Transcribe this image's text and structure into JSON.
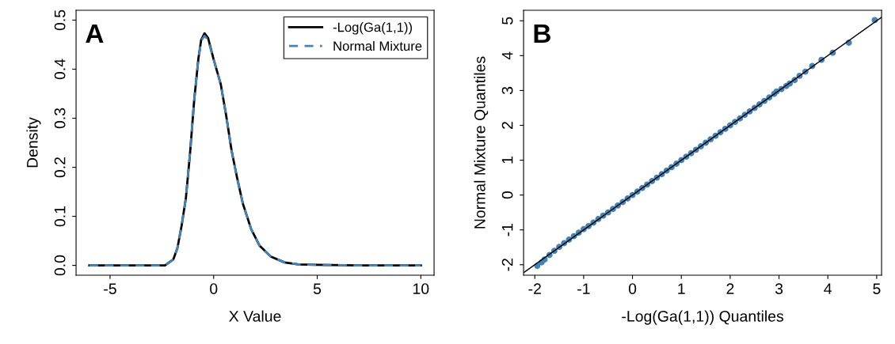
{
  "chart_data": [
    {
      "type": "line",
      "xlabel": "X Value",
      "ylabel": "Density",
      "annotations": [
        "A"
      ],
      "legend": "top right",
      "grid": false,
      "xlim": [
        -6.64,
        10.64
      ],
      "xticks": [
        -5,
        0,
        5,
        10
      ],
      "ylim": [
        -0.02,
        0.52
      ],
      "yticks": [
        {
          "value": 0,
          "label": "0.0"
        },
        0.1,
        0.2,
        0.3,
        0.4,
        0.5
      ],
      "series": [
        {
          "name": "-Log(Ga(1,1))",
          "color": "#000000",
          "line_style": "solid",
          "x": [
            -6,
            -4,
            -2.35,
            -1.95,
            -1.75,
            -1.55,
            -1.34,
            -1.14,
            -0.94,
            -0.74,
            -0.6,
            -0.44,
            -0.27,
            0,
            0.34,
            0.6,
            0.87,
            1.14,
            1.41,
            1.81,
            2.22,
            2.76,
            3.43,
            4.1,
            5,
            7,
            10
          ],
          "values": [
            0,
            0,
            0,
            0.012,
            0.035,
            0.08,
            0.137,
            0.228,
            0.336,
            0.42,
            0.46,
            0.473,
            0.464,
            0.42,
            0.37,
            0.307,
            0.233,
            0.177,
            0.126,
            0.074,
            0.04,
            0.018,
            0.006,
            0.002,
            0.001,
            0,
            0
          ]
        },
        {
          "name": "Normal Mixture",
          "color": "#4682b4",
          "line_style": "dashed",
          "x": [
            -6,
            -4,
            -2.35,
            -1.95,
            -1.75,
            -1.55,
            -1.34,
            -1.14,
            -0.94,
            -0.74,
            -0.6,
            -0.44,
            -0.27,
            0,
            0.34,
            0.6,
            0.87,
            1.14,
            1.41,
            1.81,
            2.22,
            2.76,
            3.43,
            4.1,
            5,
            7,
            10
          ],
          "values": [
            0,
            0,
            0,
            0.012,
            0.035,
            0.08,
            0.137,
            0.228,
            0.336,
            0.42,
            0.458,
            0.468,
            0.46,
            0.42,
            0.37,
            0.307,
            0.233,
            0.177,
            0.126,
            0.074,
            0.04,
            0.018,
            0.006,
            0.002,
            0.001,
            0,
            0
          ]
        }
      ]
    },
    {
      "type": "scatter",
      "xlabel": "-Log(Ga(1,1)) Quantiles",
      "ylabel": "Normal Mixture Quantiles",
      "annotations": [
        "B"
      ],
      "grid": false,
      "xlim": [
        -2.23,
        5.1
      ],
      "xticks": [
        -2,
        -1,
        0,
        1,
        2,
        3,
        4,
        5
      ],
      "ylim": [
        -2.3,
        5.3
      ],
      "yticks": [
        -2,
        -1,
        0,
        1,
        2,
        3,
        4,
        5
      ],
      "series": [
        {
          "color": "#4682b4",
          "marker": "circle",
          "x": [
            -1.95,
            -1.86,
            -1.8,
            -1.7,
            -1.6,
            -1.5,
            -1.4,
            -1.3,
            -1.2,
            -1.1,
            -1.0,
            -0.9,
            -0.8,
            -0.7,
            -0.6,
            -0.5,
            -0.4,
            -0.3,
            -0.2,
            -0.1,
            0,
            0.1,
            0.2,
            0.3,
            0.4,
            0.5,
            0.6,
            0.7,
            0.8,
            0.9,
            1.0,
            1.1,
            1.2,
            1.3,
            1.4,
            1.5,
            1.6,
            1.7,
            1.8,
            1.9,
            2.0,
            2.1,
            2.2,
            2.3,
            2.4,
            2.5,
            2.6,
            2.7,
            2.8,
            2.9,
            2.95,
            3.05,
            3.15,
            3.22,
            3.32,
            3.42,
            3.54,
            3.68,
            3.87,
            4.1,
            4.43,
            4.96
          ],
          "values": [
            -2.03,
            -1.93,
            -1.85,
            -1.72,
            -1.6,
            -1.49,
            -1.38,
            -1.28,
            -1.18,
            -1.08,
            -0.98,
            -0.89,
            -0.79,
            -0.69,
            -0.59,
            -0.5,
            -0.4,
            -0.3,
            -0.2,
            -0.1,
            0,
            0.1,
            0.2,
            0.3,
            0.4,
            0.5,
            0.6,
            0.7,
            0.8,
            0.9,
            1.0,
            1.1,
            1.2,
            1.3,
            1.4,
            1.5,
            1.6,
            1.7,
            1.8,
            1.9,
            2.0,
            2.1,
            2.2,
            2.3,
            2.4,
            2.5,
            2.6,
            2.7,
            2.8,
            2.9,
            2.97,
            3.04,
            3.13,
            3.2,
            3.3,
            3.42,
            3.54,
            3.7,
            3.88,
            4.08,
            4.37,
            5.02
          ]
        },
        {
          "type": "line",
          "color": "#000000",
          "line_style": "solid",
          "marker": "none",
          "x": [
            -2.23,
            5.1
          ],
          "values": [
            -2.23,
            5.1
          ]
        }
      ]
    }
  ]
}
